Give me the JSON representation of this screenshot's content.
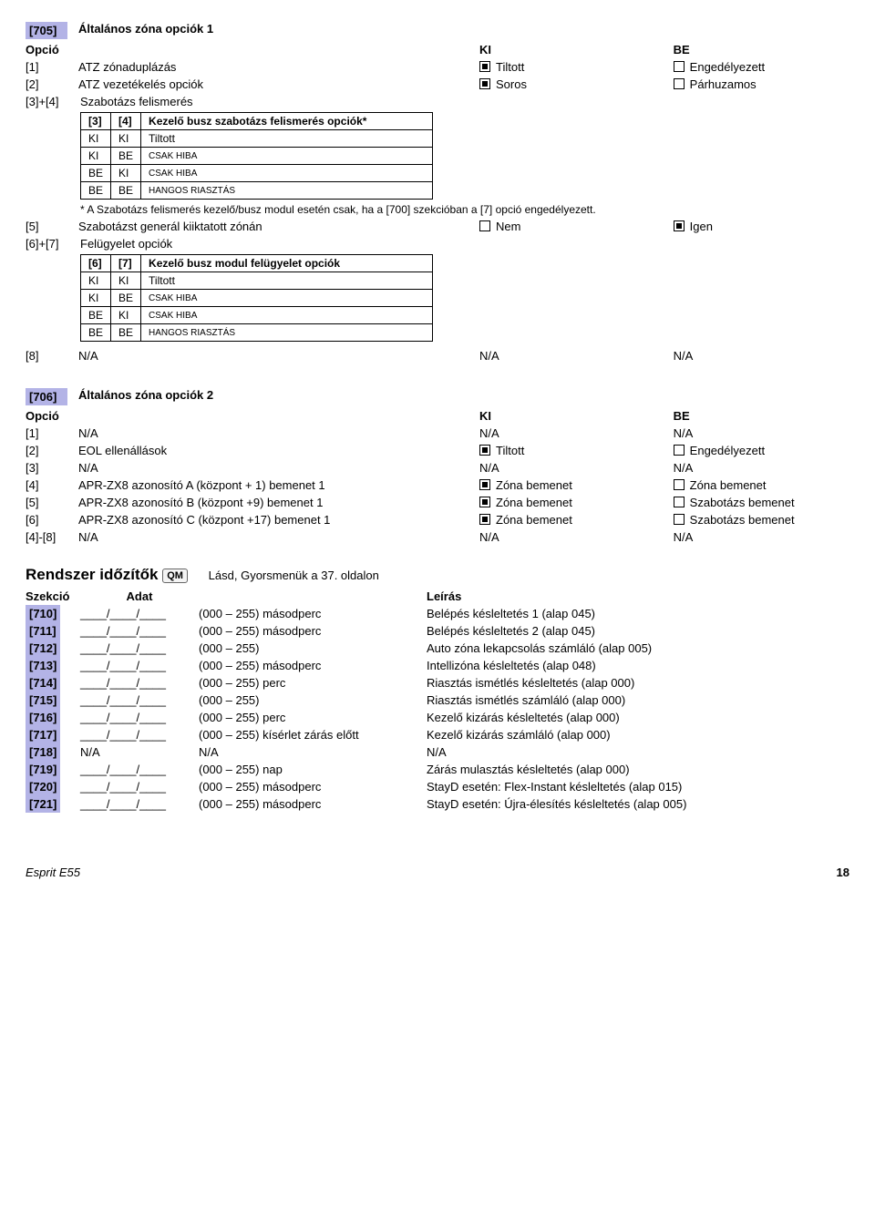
{
  "s705": {
    "code": "[705]",
    "title": "Általános zóna opciók 1",
    "hdr_opcio": "Opció",
    "hdr_ki": "KI",
    "hdr_be": "BE",
    "r1": {
      "id": "[1]",
      "label": "ATZ zónaduplázás",
      "ki": "Tiltott",
      "be": "Engedélyezett"
    },
    "r2": {
      "id": "[2]",
      "label": "ATZ vezetékelés opciók",
      "ki": "Soros",
      "be": "Párhuzamos"
    },
    "r34": {
      "id": "[3]+[4]",
      "label": "Szabotázs felismerés"
    },
    "t1": {
      "h3": "[3]",
      "h4": "[4]",
      "hdesc": "Kezelő busz szabotázs felismerés opciók*",
      "rows": [
        {
          "a": "KI",
          "b": "KI",
          "c": "Tiltott"
        },
        {
          "a": "KI",
          "b": "BE",
          "c": "CSAK HIBA"
        },
        {
          "a": "BE",
          "b": "KI",
          "c": "CSAK HIBA"
        },
        {
          "a": "BE",
          "b": "BE",
          "c": "HANGOS RIASZTÁS"
        }
      ]
    },
    "note": "* A Szabotázs felismerés kezelő/busz modul esetén csak, ha a [700] szekcióban a [7] opció engedélyezett.",
    "r5": {
      "id": "[5]",
      "label": "Szabotázst generál kiiktatott zónán",
      "ki": "Nem",
      "be": "Igen"
    },
    "r67": {
      "id": "[6]+[7]",
      "label": "Felügyelet opciók"
    },
    "t2": {
      "h6": "[6]",
      "h7": "[7]",
      "hdesc": "Kezelő busz modul felügyelet opciók",
      "rows": [
        {
          "a": "KI",
          "b": "KI",
          "c": "Tiltott"
        },
        {
          "a": "KI",
          "b": "BE",
          "c": "CSAK HIBA"
        },
        {
          "a": "BE",
          "b": "KI",
          "c": "CSAK HIBA"
        },
        {
          "a": "BE",
          "b": "BE",
          "c": "HANGOS RIASZTÁS"
        }
      ]
    },
    "r8": {
      "id": "[8]",
      "label": "N/A",
      "ki": "N/A",
      "be": "N/A"
    }
  },
  "s706": {
    "code": "[706]",
    "title": "Általános zóna opciók 2",
    "hdr_opcio": "Opció",
    "hdr_ki": "KI",
    "hdr_be": "BE",
    "rows": [
      {
        "id": "[1]",
        "label": "N/A",
        "ki": "N/A",
        "be": "N/A",
        "cbki": false,
        "cbbe": false
      },
      {
        "id": "[2]",
        "label": "EOL ellenállások",
        "ki": "Tiltott",
        "be": "Engedélyezett",
        "cbki": true,
        "cbbe": true
      },
      {
        "id": "[3]",
        "label": "N/A",
        "ki": "N/A",
        "be": "N/A",
        "cbki": false,
        "cbbe": false
      },
      {
        "id": "[4]",
        "label": "APR-ZX8 azonosító A (központ + 1) bemenet 1",
        "ki": "Zóna bemenet",
        "be": "Zóna bemenet",
        "cbki": true,
        "cbbe": true
      },
      {
        "id": "[5]",
        "label": "APR-ZX8 azonosító B (központ +9) bemenet 1",
        "ki": "Zóna bemenet",
        "be": "Szabotázs bemenet",
        "cbki": true,
        "cbbe": true
      },
      {
        "id": "[6]",
        "label": "APR-ZX8 azonosító C (központ +17) bemenet 1",
        "ki": "Zóna bemenet",
        "be": "Szabotázs bemenet",
        "cbki": true,
        "cbbe": true
      },
      {
        "id": "[4]-[8]",
        "label": "N/A",
        "ki": "N/A",
        "be": "N/A",
        "cbki": false,
        "cbbe": false
      }
    ]
  },
  "timers": {
    "title": "Rendszer időzítők",
    "qm": "QM",
    "hint": "Lásd, Gyorsmenük a 37. oldalon",
    "hdr_szekcio": "Szekció",
    "hdr_adat": "Adat",
    "hdr_leiras": "Leírás",
    "blank": "____/____/____",
    "rows": [
      {
        "code": "[710]",
        "adat": "blank",
        "unit": "(000 – 255) másodperc",
        "desc": "Belépés késleltetés 1 (alap 045)"
      },
      {
        "code": "[711]",
        "adat": "blank",
        "unit": "(000 – 255) másodperc",
        "desc": "Belépés késleltetés 2 (alap 045)"
      },
      {
        "code": "[712]",
        "adat": "blank",
        "unit": "(000 – 255)",
        "desc": "Auto zóna lekapcsolás számláló (alap 005)"
      },
      {
        "code": "[713]",
        "adat": "blank",
        "unit": "(000 – 255) másodperc",
        "desc": "Intellizóna késleltetés (alap 048)"
      },
      {
        "code": "[714]",
        "adat": "blank",
        "unit": "(000 – 255) perc",
        "desc": "Riasztás ismétlés késleltetés (alap 000)"
      },
      {
        "code": "[715]",
        "adat": "blank",
        "unit": "(000 – 255)",
        "desc": "Riasztás ismétlés számláló (alap 000)"
      },
      {
        "code": "[716]",
        "adat": "blank",
        "unit": "(000 – 255) perc",
        "desc": "Kezelő kizárás késleltetés (alap 000)"
      },
      {
        "code": "[717]",
        "adat": "blank",
        "unit": "(000 – 255) kísérlet zárás előtt",
        "desc": "Kezelő kizárás számláló (alap 000)"
      },
      {
        "code": "[718]",
        "adat": "na",
        "unit": "N/A",
        "desc": "N/A"
      },
      {
        "code": "[719]",
        "adat": "blank",
        "unit": "(000 – 255) nap",
        "desc": "Zárás mulasztás késleltetés (alap 000)"
      },
      {
        "code": "[720]",
        "adat": "blank",
        "unit": "(000 – 255) másodperc",
        "desc": "StayD esetén: Flex-Instant késleltetés (alap 015)"
      },
      {
        "code": "[721]",
        "adat": "blank",
        "unit": "(000 – 255) másodperc",
        "desc": "StayD esetén: Újra-élesítés késleltetés (alap 005)"
      }
    ],
    "na": "N/A"
  },
  "footer": {
    "product": "Esprit E55",
    "page": "18"
  }
}
